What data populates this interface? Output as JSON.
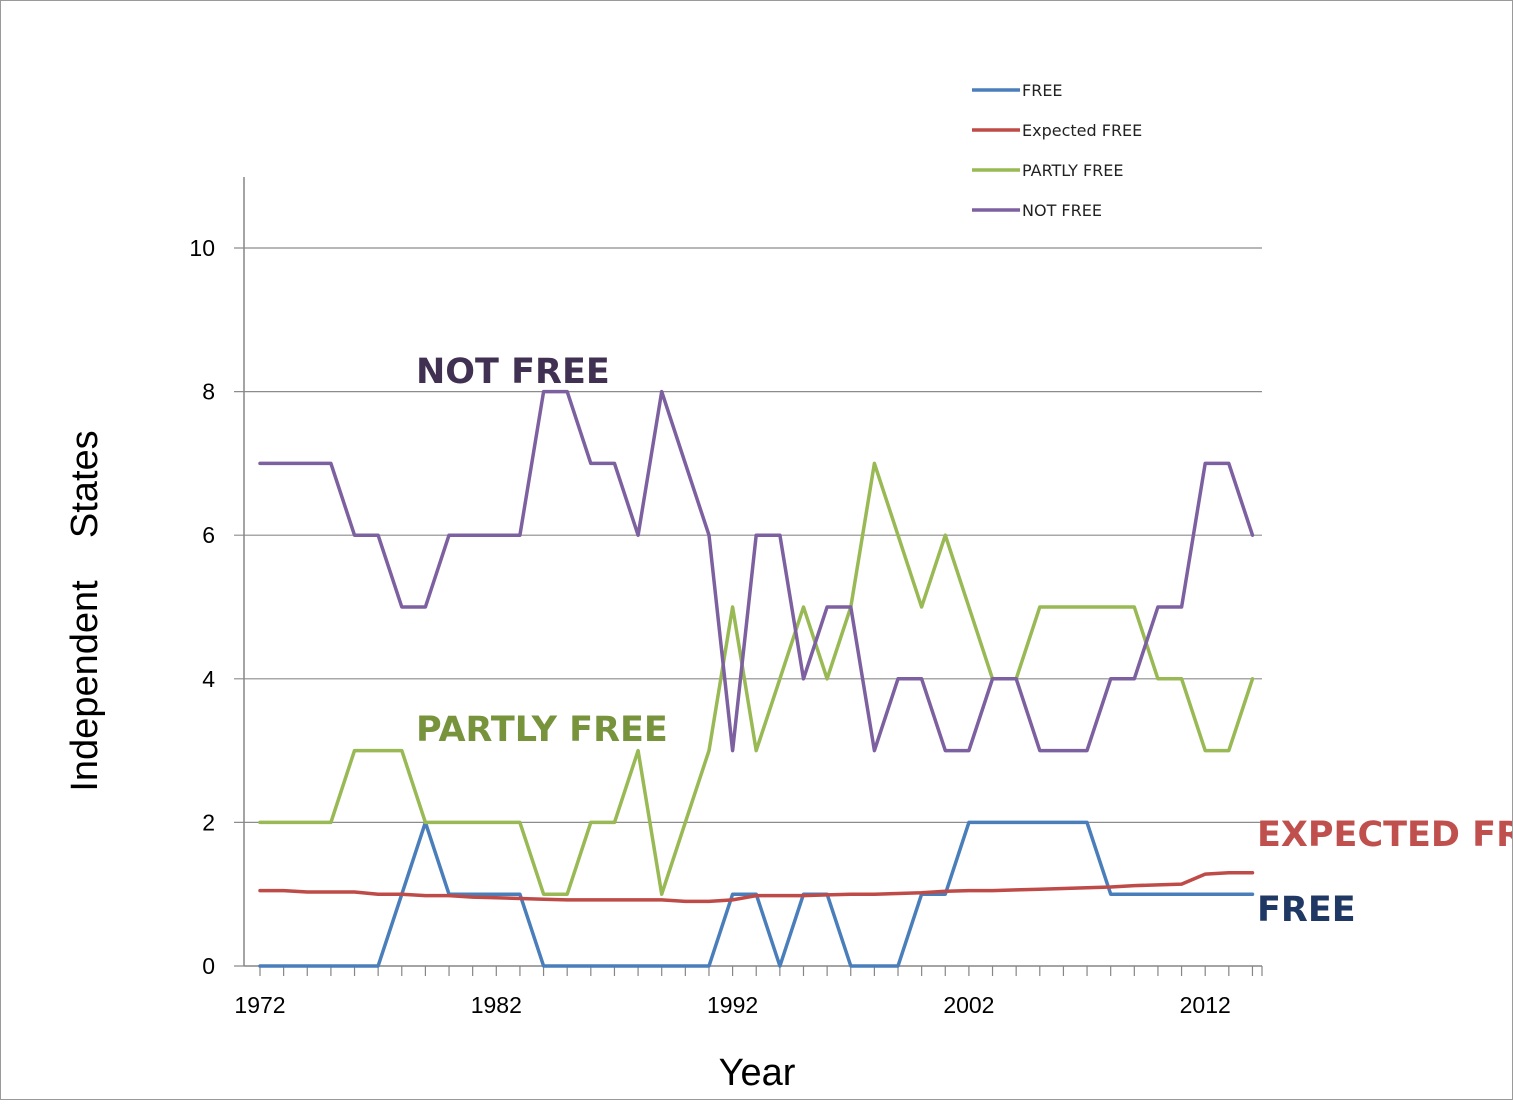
{
  "chart_data": {
    "type": "line",
    "xlabel": "Year",
    "ylabel": "Independent    States",
    "ylim": [
      0,
      11
    ],
    "yticks": [
      0,
      2,
      4,
      6,
      8,
      10
    ],
    "xlim": [
      1972,
      2014
    ],
    "xticks": [
      1972,
      1982,
      1992,
      2002,
      2012
    ],
    "grid": "horizontal",
    "legend_position": "top-right",
    "x": [
      1972,
      1973,
      1974,
      1975,
      1976,
      1977,
      1978,
      1979,
      1980,
      1981,
      1982,
      1983,
      1984,
      1985,
      1986,
      1987,
      1988,
      1989,
      1990,
      1991,
      1992,
      1993,
      1994,
      1995,
      1996,
      1997,
      1998,
      1999,
      2000,
      2001,
      2002,
      2003,
      2004,
      2005,
      2006,
      2007,
      2008,
      2009,
      2010,
      2011,
      2012,
      2013,
      2014
    ],
    "series": [
      {
        "name": "FREE",
        "color": "#4a7ebb",
        "values": [
          0,
          0,
          0,
          0,
          0,
          0,
          1,
          2,
          1,
          1,
          1,
          1,
          0,
          0,
          0,
          0,
          0,
          0,
          0,
          0,
          1,
          1,
          0,
          1,
          1,
          0,
          0,
          0,
          1,
          1,
          2,
          2,
          2,
          2,
          2,
          2,
          1,
          1,
          1,
          1,
          1,
          1,
          1
        ]
      },
      {
        "name": "Expected FREE",
        "color": "#be4b48",
        "values": [
          1.05,
          1.05,
          1.03,
          1.03,
          1.03,
          1.0,
          1.0,
          0.98,
          0.98,
          0.96,
          0.95,
          0.94,
          0.93,
          0.92,
          0.92,
          0.92,
          0.92,
          0.92,
          0.9,
          0.9,
          0.92,
          0.98,
          0.98,
          0.98,
          0.99,
          1.0,
          1.0,
          1.01,
          1.02,
          1.04,
          1.05,
          1.05,
          1.06,
          1.07,
          1.08,
          1.09,
          1.1,
          1.12,
          1.13,
          1.14,
          1.28,
          1.3,
          1.3
        ]
      },
      {
        "name": "PARTLY FREE",
        "color": "#98b954",
        "values": [
          2,
          2,
          2,
          2,
          3,
          3,
          3,
          2,
          2,
          2,
          2,
          2,
          1,
          1,
          2,
          2,
          3,
          1,
          2,
          3,
          5,
          3,
          4,
          5,
          4,
          5,
          7,
          6,
          5,
          6,
          5,
          4,
          4,
          5,
          5,
          5,
          5,
          5,
          4,
          4,
          3,
          3,
          4
        ]
      },
      {
        "name": "NOT FREE",
        "color": "#7d60a0",
        "values": [
          7,
          7,
          7,
          7,
          6,
          6,
          5,
          5,
          6,
          6,
          6,
          6,
          8,
          8,
          7,
          7,
          6,
          8,
          7,
          6,
          3,
          6,
          6,
          4,
          5,
          5,
          3,
          4,
          4,
          3,
          3,
          4,
          4,
          3,
          3,
          3,
          4,
          4,
          5,
          5,
          7,
          7,
          6
        ]
      }
    ],
    "annotations": [
      {
        "text": "NOT FREE",
        "color": "#403152"
      },
      {
        "text": "PARTLY FREE",
        "color": "#77933c"
      },
      {
        "text": "EXPECTED FR",
        "color": "#c0504d"
      },
      {
        "text": "FREE",
        "color": "#1f3864"
      }
    ]
  }
}
